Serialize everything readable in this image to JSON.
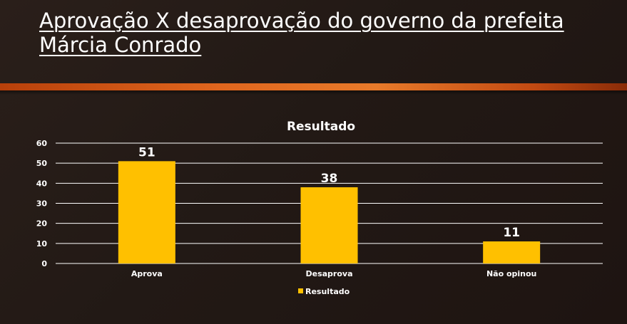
{
  "slide": {
    "title": "Aprovação X desaprovação do governo da prefeita Márcia Conrado"
  },
  "colors": {
    "bar": "#FFC000",
    "text": "#FFFFFF",
    "gridline": "#FFFFFF",
    "accent": "#E0661E"
  },
  "chart_data": {
    "type": "bar",
    "title": "Resultado",
    "categories": [
      "Aprova",
      "Desaprova",
      "Não opinou"
    ],
    "series": [
      {
        "name": "Resultado",
        "values": [
          51,
          38,
          11
        ]
      }
    ],
    "data_labels": [
      "51",
      "38",
      "11"
    ],
    "ylim": [
      0,
      60
    ],
    "yticks": [
      0,
      10,
      20,
      30,
      40,
      50,
      60
    ],
    "grid": true,
    "legend": "bottom"
  }
}
